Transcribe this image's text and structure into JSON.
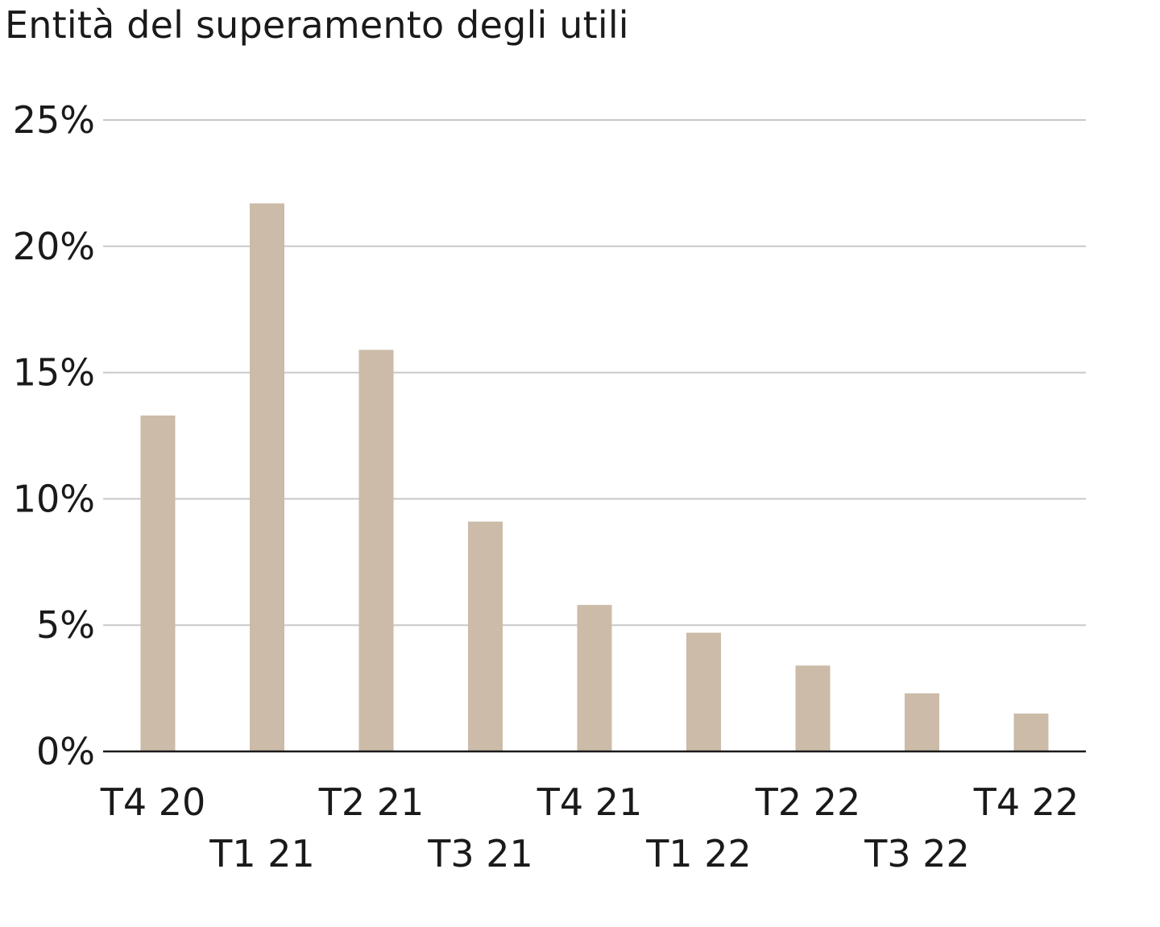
{
  "chart_data": {
    "type": "bar",
    "title": "Entità del superamento degli utili",
    "xlabel": "",
    "ylabel": "",
    "categories": [
      "T4 20",
      "T1 21",
      "T2 21",
      "T3 21",
      "T4 21",
      "T1 22",
      "T2 22",
      "T3 22",
      "T4 22"
    ],
    "values": [
      13.3,
      21.7,
      15.9,
      9.1,
      5.8,
      4.7,
      3.4,
      2.3,
      1.5
    ],
    "ylim": [
      0,
      25
    ],
    "yticks": [
      0,
      5,
      10,
      15,
      20,
      25
    ],
    "ytick_labels": [
      "0%",
      "5%",
      "10%",
      "15%",
      "20%",
      "25%"
    ],
    "x_label_layout": "staggered",
    "grid": true,
    "legend": "none",
    "colors": {
      "bar": "#cbbba8",
      "grid": "#c8c8c8",
      "axis": "#1a1a1a",
      "text": "#1a1a1a"
    }
  }
}
